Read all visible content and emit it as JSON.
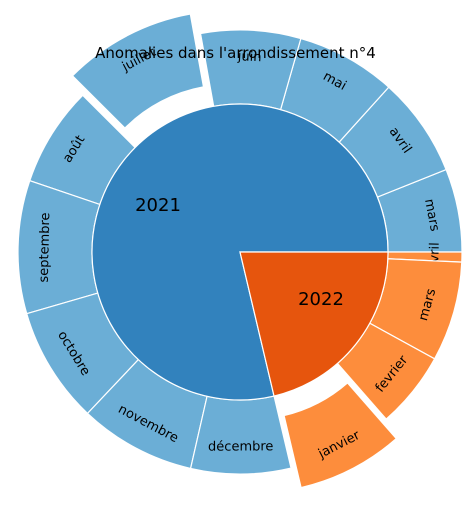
{
  "chart_data": {
    "type": "sunburst",
    "title": "Anomalies dans l'arrondissement n°4",
    "inner": [
      {
        "label": "2021",
        "color": "#3282bd"
      },
      {
        "label": "2022",
        "color": "#e6550d"
      }
    ],
    "outer": [
      {
        "year": "2021",
        "label": "juillet",
        "value": 4,
        "exploded": true
      },
      {
        "year": "2021",
        "label": "juin",
        "value": 3,
        "exploded": false
      },
      {
        "year": "2021",
        "label": "mai",
        "value": 3,
        "exploded": false
      },
      {
        "year": "2021",
        "label": "avril",
        "value": 3,
        "exploded": false
      },
      {
        "year": "2021",
        "label": "mars",
        "value": 2.5,
        "exploded": false
      },
      {
        "year": "2021",
        "label": "août",
        "value": 3,
        "exploded": false
      },
      {
        "year": "2021",
        "label": "septembre",
        "value": 4,
        "exploded": false
      },
      {
        "year": "2021",
        "label": "octobre",
        "value": 3.5,
        "exploded": false
      },
      {
        "year": "2021",
        "label": "novembre",
        "value": 3.5,
        "exploded": false
      },
      {
        "year": "2021",
        "label": "décembre",
        "value": 3,
        "exploded": false
      },
      {
        "year": "2022",
        "label": "avril",
        "value": 0.3,
        "exploded": false
      },
      {
        "year": "2022",
        "label": "mars",
        "value": 3,
        "exploded": false
      },
      {
        "year": "2022",
        "label": "fevrier",
        "value": 2.3,
        "exploded": false
      },
      {
        "year": "2022",
        "label": "janvier",
        "value": 3.2,
        "exploded": true
      }
    ],
    "colors": {
      "2021_light": "#6baed6",
      "2022_light": "#fd8d3c"
    }
  }
}
